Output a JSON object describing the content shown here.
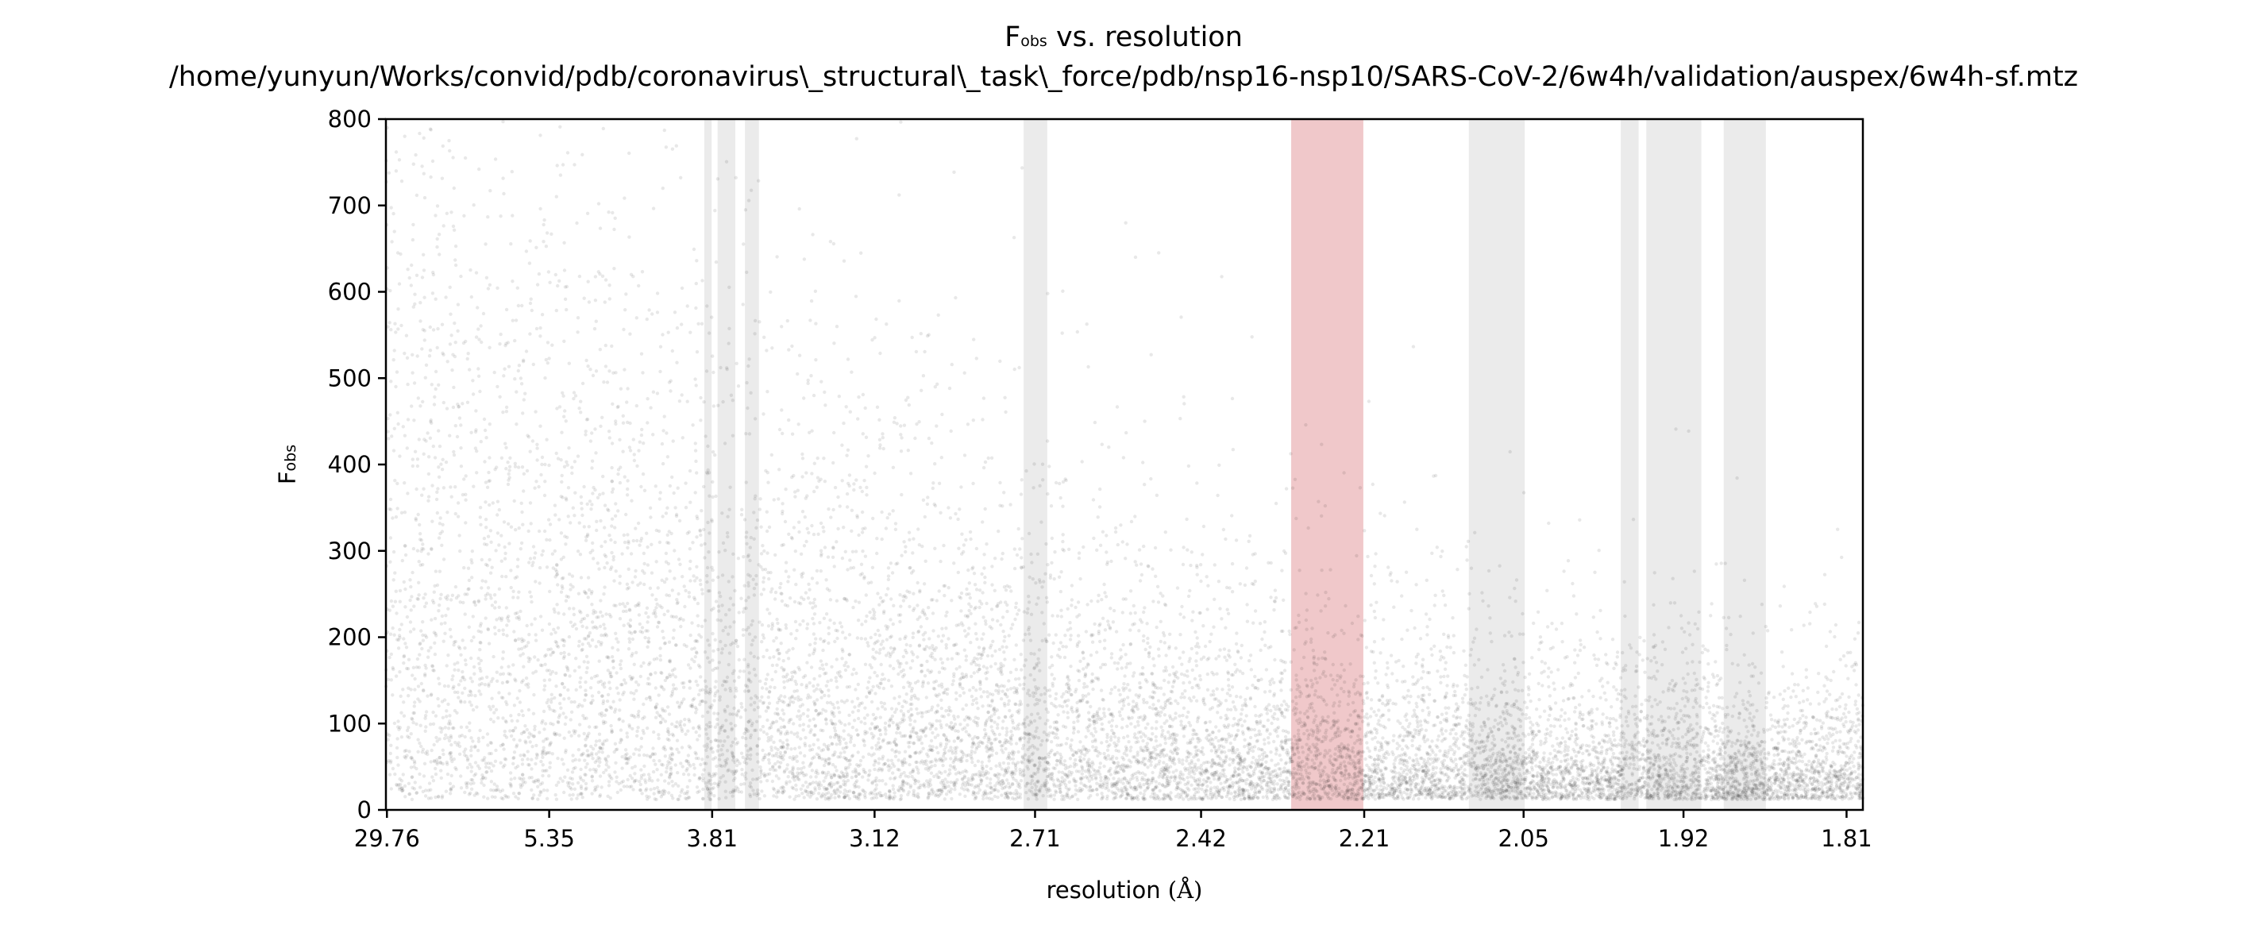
{
  "chart_data": {
    "type": "scatter",
    "title": {
      "line1_main": "F",
      "line1_sub": "obs",
      "line1_rest": " vs. resolution",
      "line2": "/home/yunyun/Works/convid/pdb/coronavirus\\_structural\\_task\\_force/pdb/nsp16-nsp10/SARS-CoV-2/6w4h/validation/auspex/6w4h-sf.mtz"
    },
    "xlabel": {
      "text": "resolution ",
      "unit": "(Å)"
    },
    "ylabel": {
      "main": "F",
      "sub": "obs"
    },
    "x_scale": "inverse-square resolution (1/d²), labelled in Å",
    "xlim_d": [
      33.0,
      1.8
    ],
    "ylim": [
      0,
      800
    ],
    "x_ticks": [
      "29.76",
      "5.35",
      "3.81",
      "3.12",
      "2.71",
      "2.42",
      "2.21",
      "2.05",
      "1.92",
      "1.81"
    ],
    "y_ticks": [
      "0",
      "100",
      "200",
      "300",
      "400",
      "500",
      "600",
      "700",
      "800"
    ],
    "grid": false,
    "legend": "none",
    "point_color": "#000000",
    "highlight_bands": [
      {
        "d_low": 3.856,
        "d_high": 3.813,
        "color": "#d3d3d3",
        "kind": "ice-ring"
      },
      {
        "d_low": 3.779,
        "d_high": 3.683,
        "color": "#d3d3d3",
        "kind": "ice-ring"
      },
      {
        "d_low": 3.634,
        "d_high": 3.566,
        "color": "#d3d3d3",
        "kind": "ice-ring"
      },
      {
        "d_low": 2.734,
        "d_high": 2.685,
        "color": "#d3d3d3",
        "kind": "ice-ring"
      },
      {
        "d_low": 2.297,
        "d_high": 2.211,
        "color": "#e39a9e",
        "kind": "flagged-ring"
      },
      {
        "d_low": 2.101,
        "d_high": 2.049,
        "color": "#d3d3d3",
        "kind": "ice-ring"
      },
      {
        "d_low": 1.968,
        "d_high": 1.954,
        "color": "#d3d3d3",
        "kind": "ice-ring"
      },
      {
        "d_low": 1.948,
        "d_high": 1.907,
        "color": "#d3d3d3",
        "kind": "ice-ring"
      },
      {
        "d_low": 1.891,
        "d_high": 1.862,
        "color": "#d3d3d3",
        "kind": "ice-ring"
      }
    ]
  }
}
